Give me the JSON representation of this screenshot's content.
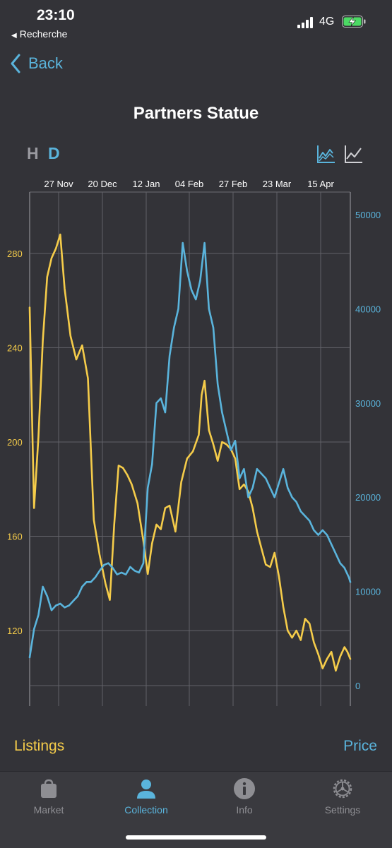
{
  "status": {
    "time": "23:10",
    "back_app": "Recherche",
    "network": "4G",
    "battery_charging": true
  },
  "nav": {
    "back_label": "Back"
  },
  "page_title": "Partners Statue",
  "modes": {
    "hour": "H",
    "day": "D",
    "active": "D"
  },
  "colors": {
    "listings": "#f5cc4a",
    "price": "#5ab4dc",
    "background": "#333338"
  },
  "chart_data": {
    "type": "line",
    "x_tick_labels": [
      "27 Nov",
      "20 Dec",
      "12 Jan",
      "04 Feb",
      "27 Feb",
      "23 Mar",
      "15 Apr"
    ],
    "y_left_ticks": [
      "120",
      "160",
      "200",
      "240",
      "280"
    ],
    "y_right_ticks": [
      "0",
      "10000",
      "20000",
      "30000",
      "40000",
      "50000"
    ],
    "y_left_range": [
      88,
      306
    ],
    "y_right_range": [
      0,
      50000
    ],
    "x_range": [
      0,
      22
    ],
    "grid": true,
    "series": [
      {
        "name": "Listings",
        "axis": "left",
        "color": "#f5cc4a",
        "points": [
          [
            0,
            257
          ],
          [
            0.3,
            172
          ],
          [
            0.6,
            202
          ],
          [
            0.9,
            243
          ],
          [
            1.2,
            270
          ],
          [
            1.5,
            278
          ],
          [
            1.8,
            282
          ],
          [
            2.1,
            288
          ],
          [
            2.4,
            265
          ],
          [
            2.8,
            245
          ],
          [
            3.2,
            235
          ],
          [
            3.6,
            241
          ],
          [
            4.0,
            227
          ],
          [
            4.4,
            167
          ],
          [
            4.8,
            152
          ],
          [
            5.2,
            140
          ],
          [
            5.5,
            133
          ],
          [
            5.8,
            165
          ],
          [
            6.1,
            190
          ],
          [
            6.4,
            189
          ],
          [
            6.7,
            186
          ],
          [
            7.0,
            182
          ],
          [
            7.4,
            174
          ],
          [
            7.8,
            158
          ],
          [
            8.1,
            144
          ],
          [
            8.4,
            157
          ],
          [
            8.7,
            165
          ],
          [
            9.0,
            163
          ],
          [
            9.3,
            172
          ],
          [
            9.6,
            173
          ],
          [
            10.0,
            162
          ],
          [
            10.4,
            183
          ],
          [
            10.8,
            193
          ],
          [
            11.2,
            196
          ],
          [
            11.6,
            203
          ],
          [
            11.8,
            220
          ],
          [
            12.0,
            226
          ],
          [
            12.3,
            205
          ],
          [
            12.6,
            199
          ],
          [
            12.9,
            192
          ],
          [
            13.2,
            200
          ],
          [
            13.5,
            199
          ],
          [
            13.8,
            197
          ],
          [
            14.1,
            193
          ],
          [
            14.4,
            180
          ],
          [
            14.7,
            182
          ],
          [
            15.0,
            179
          ],
          [
            15.3,
            172
          ],
          [
            15.6,
            162
          ],
          [
            15.9,
            155
          ],
          [
            16.2,
            148
          ],
          [
            16.5,
            147
          ],
          [
            16.8,
            153
          ],
          [
            17.1,
            143
          ],
          [
            17.4,
            130
          ],
          [
            17.7,
            120
          ],
          [
            18.0,
            117
          ],
          [
            18.3,
            120
          ],
          [
            18.6,
            116
          ],
          [
            18.9,
            125
          ],
          [
            19.2,
            123
          ],
          [
            19.5,
            115
          ],
          [
            19.8,
            110
          ],
          [
            20.1,
            104
          ],
          [
            20.4,
            108
          ],
          [
            20.7,
            111
          ],
          [
            21.0,
            103
          ],
          [
            21.3,
            109
          ],
          [
            21.6,
            113
          ],
          [
            21.8,
            111
          ],
          [
            22.0,
            108
          ]
        ]
      },
      {
        "name": "Price",
        "axis": "right",
        "color": "#5ab4dc",
        "points": [
          [
            0,
            3000
          ],
          [
            0.3,
            6000
          ],
          [
            0.6,
            7500
          ],
          [
            0.9,
            10500
          ],
          [
            1.2,
            9500
          ],
          [
            1.5,
            8000
          ],
          [
            1.8,
            8500
          ],
          [
            2.1,
            8700
          ],
          [
            2.4,
            8300
          ],
          [
            2.7,
            8500
          ],
          [
            3.0,
            9000
          ],
          [
            3.3,
            9500
          ],
          [
            3.6,
            10500
          ],
          [
            3.9,
            11000
          ],
          [
            4.2,
            11000
          ],
          [
            4.5,
            11500
          ],
          [
            4.8,
            12200
          ],
          [
            5.1,
            12800
          ],
          [
            5.4,
            13000
          ],
          [
            5.7,
            12500
          ],
          [
            6.0,
            11800
          ],
          [
            6.3,
            12000
          ],
          [
            6.6,
            11800
          ],
          [
            6.9,
            12600
          ],
          [
            7.2,
            12200
          ],
          [
            7.5,
            12000
          ],
          [
            7.8,
            13000
          ],
          [
            8.1,
            21000
          ],
          [
            8.4,
            23500
          ],
          [
            8.7,
            30000
          ],
          [
            9.0,
            30500
          ],
          [
            9.3,
            29000
          ],
          [
            9.6,
            35000
          ],
          [
            9.9,
            38000
          ],
          [
            10.2,
            40000
          ],
          [
            10.5,
            47000
          ],
          [
            10.8,
            44000
          ],
          [
            11.1,
            42000
          ],
          [
            11.4,
            41000
          ],
          [
            11.7,
            43000
          ],
          [
            12.0,
            47000
          ],
          [
            12.3,
            40000
          ],
          [
            12.6,
            38000
          ],
          [
            12.9,
            32000
          ],
          [
            13.2,
            29000
          ],
          [
            13.5,
            27000
          ],
          [
            13.8,
            25000
          ],
          [
            14.1,
            26000
          ],
          [
            14.4,
            22000
          ],
          [
            14.7,
            23000
          ],
          [
            15.0,
            20000
          ],
          [
            15.3,
            21000
          ],
          [
            15.6,
            23000
          ],
          [
            15.9,
            22500
          ],
          [
            16.2,
            22000
          ],
          [
            16.5,
            21000
          ],
          [
            16.8,
            20000
          ],
          [
            17.1,
            21500
          ],
          [
            17.4,
            23000
          ],
          [
            17.7,
            21000
          ],
          [
            18.0,
            20000
          ],
          [
            18.3,
            19500
          ],
          [
            18.6,
            18500
          ],
          [
            18.9,
            18000
          ],
          [
            19.2,
            17500
          ],
          [
            19.5,
            16500
          ],
          [
            19.8,
            16000
          ],
          [
            20.1,
            16500
          ],
          [
            20.4,
            16000
          ],
          [
            20.7,
            15000
          ],
          [
            21.0,
            14000
          ],
          [
            21.3,
            13000
          ],
          [
            21.6,
            12500
          ],
          [
            21.9,
            11500
          ],
          [
            22.0,
            11000
          ]
        ]
      }
    ]
  },
  "legend": {
    "left": "Listings",
    "right": "Price"
  },
  "tabs": [
    {
      "label": "Market",
      "icon": "bag-icon",
      "active": false
    },
    {
      "label": "Collection",
      "icon": "person-icon",
      "active": true
    },
    {
      "label": "Info",
      "icon": "info-icon",
      "active": false
    },
    {
      "label": "Settings",
      "icon": "gear-icon",
      "active": false
    }
  ]
}
